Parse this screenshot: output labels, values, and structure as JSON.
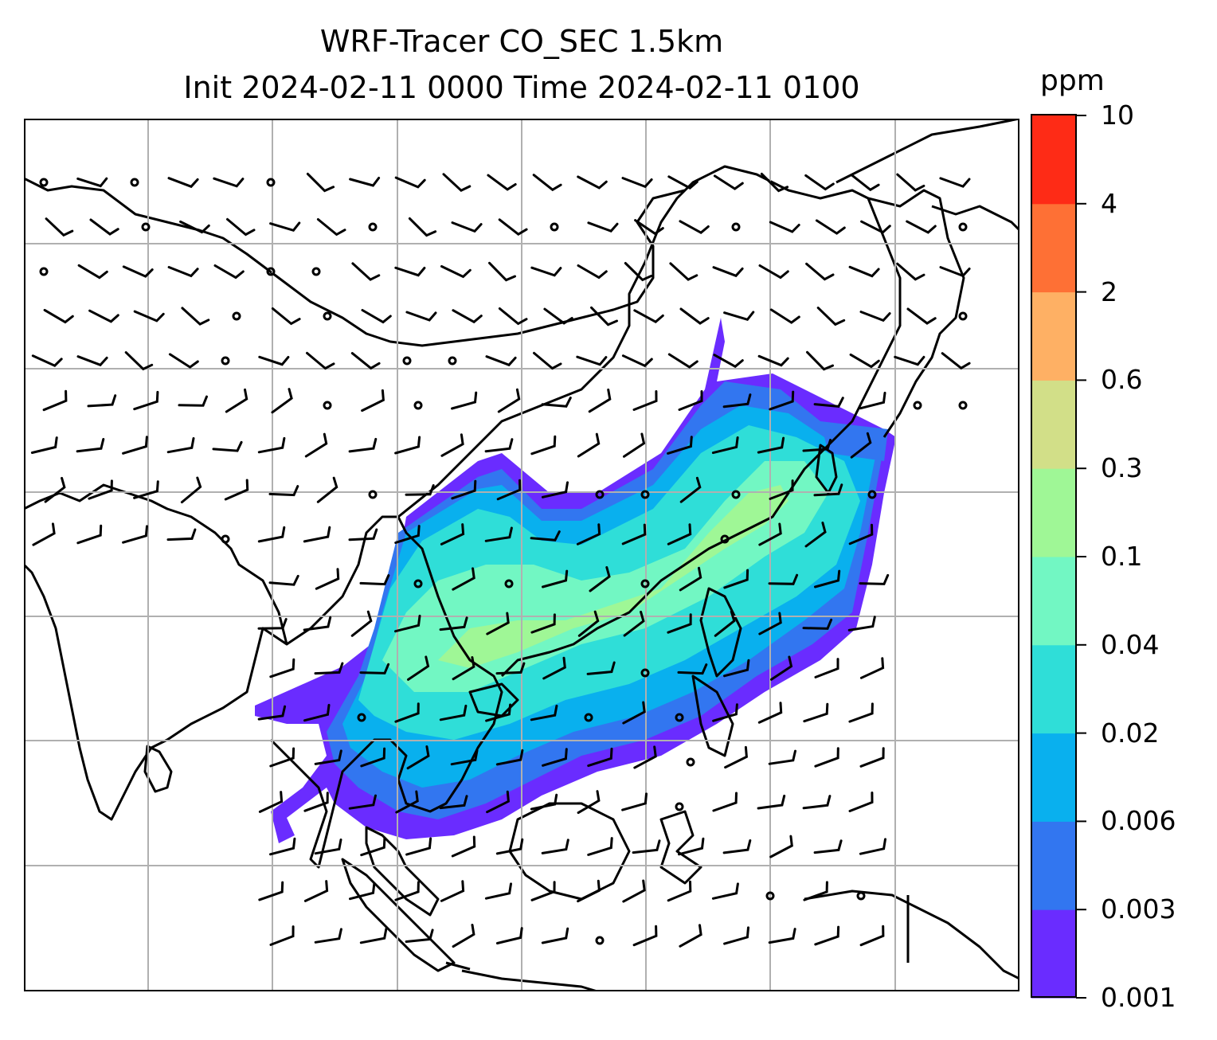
{
  "figure": {
    "title_line1": "WRF-Tracer CO_SEC 1.5km",
    "title_line2": "Init 2024-02-11 0000 Time 2024-02-11 0100"
  },
  "colorbar": {
    "units": "ppm",
    "levels": [
      "0.001",
      "0.003",
      "0.006",
      "0.02",
      "0.04",
      "0.1",
      "0.3",
      "0.6",
      "2",
      "4",
      "10"
    ],
    "colors": [
      "#6a2cff",
      "#3276f0",
      "#09b0ee",
      "#2fded8",
      "#72f7c3",
      "#9ff796",
      "#d2df88",
      "#feb064",
      "#fe7035",
      "#fe2b16"
    ]
  },
  "map": {
    "gridlines": true,
    "land_outline_color": "#000000",
    "plume_colors": {
      "outer": "#6a2cff",
      "mid": "#3276f0",
      "inner": "#09b0ee",
      "core": "#2fded8",
      "hot": "#72f7c3",
      "peak": "#9ff796"
    },
    "wind_barbs": true
  }
}
